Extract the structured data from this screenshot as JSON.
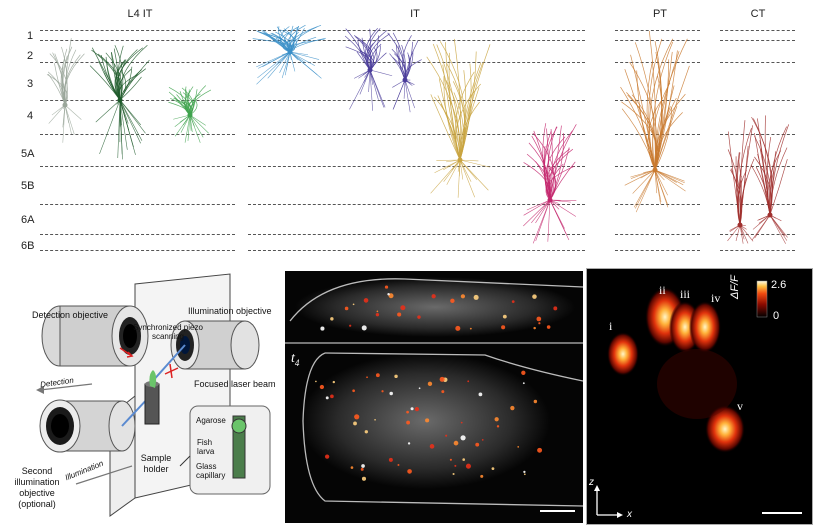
{
  "neurons": {
    "group_labels": [
      "L4 IT",
      "IT",
      "PT",
      "CT"
    ],
    "layer_labels": [
      "1",
      "2",
      "3",
      "4",
      "5A",
      "5B",
      "6A",
      "6B"
    ]
  },
  "setup": {
    "detection_objective": "Detection objective",
    "illumination_objective": "Illumination objective",
    "piezo": "Synchronized piezo scanning",
    "laser": "Focused laser beam",
    "detection_arrow": "Detection",
    "illumination_arrow": "Illumination",
    "second_objective": "Second illumination objective (optional)",
    "sample_holder": "Sample holder",
    "agarose": "Agarose",
    "fish_larva": "Fish larva",
    "glass_capillary": "Glass capillary"
  },
  "fish": {
    "timepoint": "t",
    "timepoint_sub": "4"
  },
  "heatmap": {
    "roi_labels": [
      "i",
      "ii",
      "iii",
      "iv",
      "v"
    ],
    "colorbar_max": "2.6",
    "colorbar_min": "0",
    "colorbar_label": "ΔF/F",
    "axis_z": "z",
    "axis_x": "x"
  },
  "colors": {
    "l4_dark": "#1e5a2a",
    "l4_green": "#3fa34d",
    "it_blue": "#3a8fc8",
    "it_purple": "#4a3c9a",
    "it_gold": "#c9a441",
    "it_magenta": "#c4286e",
    "pt_orange": "#c97a30",
    "ct_red": "#a0302e"
  }
}
